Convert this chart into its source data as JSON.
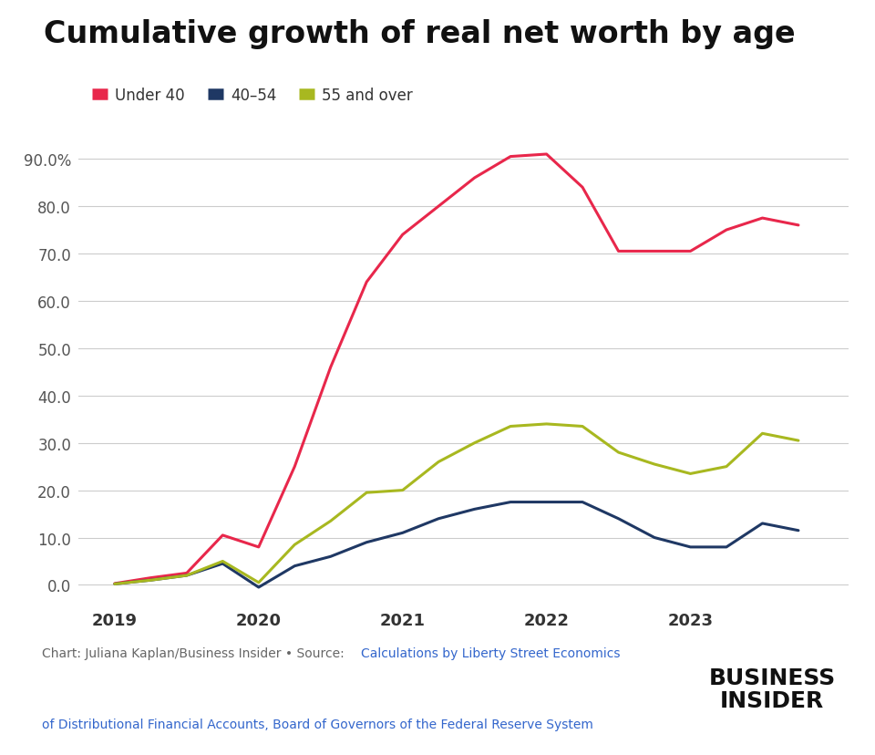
{
  "title": "Cumulative growth of real net worth by age",
  "background_color": "#ffffff",
  "plot_background_color": "#ffffff",
  "series": [
    {
      "label": "Under 40",
      "color": "#e8274b",
      "x": [
        2019.0,
        2019.25,
        2019.5,
        2019.75,
        2020.0,
        2020.25,
        2020.5,
        2020.75,
        2021.0,
        2021.25,
        2021.5,
        2021.75,
        2022.0,
        2022.25,
        2022.5,
        2022.75,
        2023.0,
        2023.25,
        2023.5,
        2023.75
      ],
      "y": [
        0.3,
        1.5,
        2.5,
        10.5,
        8.0,
        25.0,
        46.0,
        64.0,
        74.0,
        80.0,
        86.0,
        90.5,
        91.0,
        84.0,
        70.5,
        70.5,
        70.5,
        75.0,
        77.5,
        76.0
      ]
    },
    {
      "label": "40–54",
      "color": "#1f3864",
      "x": [
        2019.0,
        2019.25,
        2019.5,
        2019.75,
        2020.0,
        2020.25,
        2020.5,
        2020.75,
        2021.0,
        2021.25,
        2021.5,
        2021.75,
        2022.0,
        2022.25,
        2022.5,
        2022.75,
        2023.0,
        2023.25,
        2023.5,
        2023.75
      ],
      "y": [
        0.2,
        1.0,
        2.0,
        4.5,
        -0.5,
        4.0,
        6.0,
        9.0,
        11.0,
        14.0,
        16.0,
        17.5,
        17.5,
        17.5,
        14.0,
        10.0,
        8.0,
        8.0,
        13.0,
        11.5
      ]
    },
    {
      "label": "55 and over",
      "color": "#a8b820",
      "x": [
        2019.0,
        2019.25,
        2019.5,
        2019.75,
        2020.0,
        2020.25,
        2020.5,
        2020.75,
        2021.0,
        2021.25,
        2021.5,
        2021.75,
        2022.0,
        2022.25,
        2022.5,
        2022.75,
        2023.0,
        2023.25,
        2023.5,
        2023.75
      ],
      "y": [
        0.2,
        1.0,
        2.0,
        5.0,
        0.5,
        8.5,
        13.5,
        19.5,
        20.0,
        26.0,
        30.0,
        33.5,
        34.0,
        33.5,
        28.0,
        25.5,
        23.5,
        25.0,
        32.0,
        30.5
      ]
    }
  ],
  "ylim": [
    -4,
    95
  ],
  "yticks": [
    0.0,
    10.0,
    20.0,
    30.0,
    40.0,
    50.0,
    60.0,
    70.0,
    80.0,
    90.0
  ],
  "ytick_labels": [
    "0.0",
    "10.0",
    "20.0",
    "30.0",
    "40.0",
    "50.0",
    "60.0",
    "70.0",
    "80.0",
    "90.0%"
  ],
  "xlim": [
    2018.75,
    2024.1
  ],
  "xticks": [
    2019,
    2020,
    2021,
    2022,
    2023
  ],
  "footer_chart_label": "Chart: ",
  "footer_chart_author": "Juliana Kaplan/Business Insider",
  "footer_bullet": " • ",
  "footer_source_label": "Source: ",
  "footer_source_text": "Calculations by Liberty Street Economics of Distributional Financial Accounts, Board of Governors of the Federal Reserve System",
  "footer_logo_line1": "BUSINESS",
  "footer_logo_line2": "INSIDER",
  "line_width": 2.2,
  "grid_color": "#cccccc",
  "title_fontsize": 24,
  "tick_fontsize": 12,
  "legend_fontsize": 12
}
